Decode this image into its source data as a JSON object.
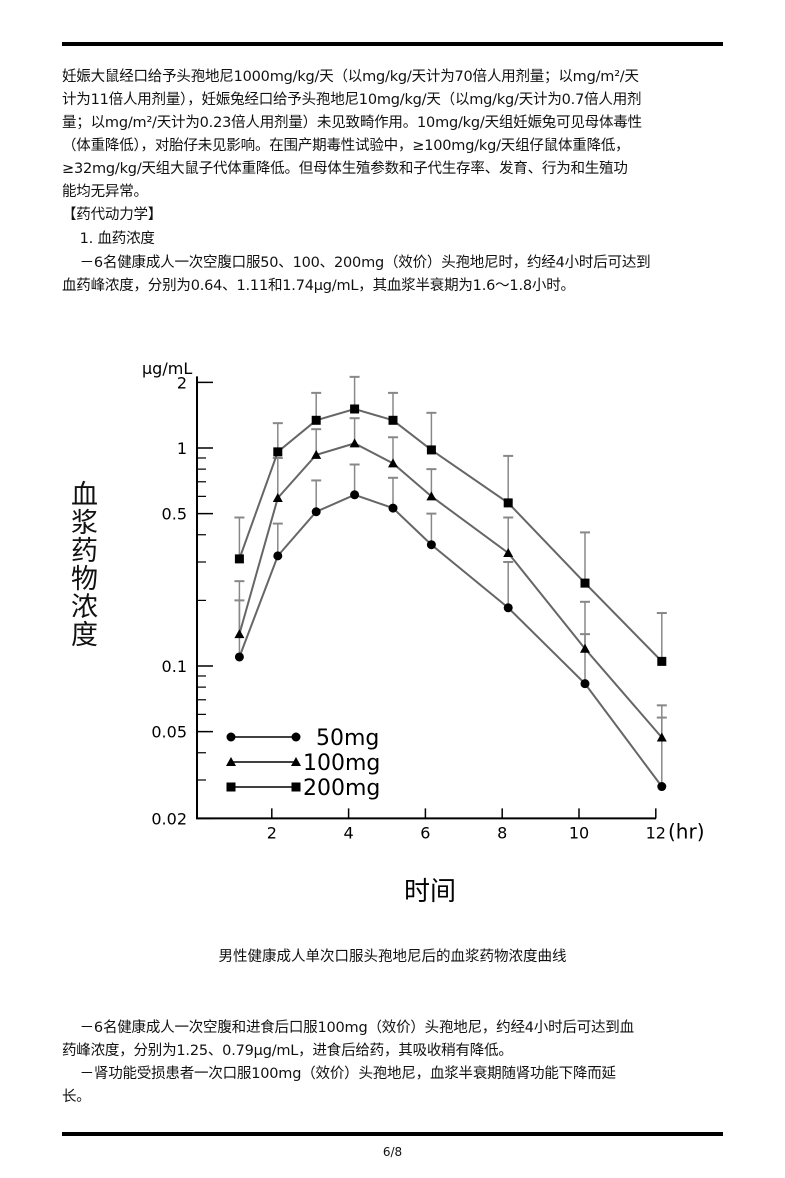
{
  "paragraph1": [
    "    妊娠大鼠经口给予头孢地尼1000mg/kg/天（以mg/kg/天计为70倍人用剂量；以mg/m²/天",
    "计为11倍人用剂量），妊娠兔经口给予头孢地尼10mg/kg/天（以mg/kg/天计为0.7倍人用剂",
    "量；以mg/m²/天计为0.23倍人用剂量）未见致畸作用。10mg/kg/天组妊娠兔可见母体毒性",
    "（体重降低），对胎仔未见影响。在围产期毒性试验中，≥100mg/kg/天组仔鼠体重降低，",
    "≥32mg/kg/天组大鼠子代体重降低。但母体生殖参数和子代生存率、发育、行为和生殖功",
    "能均无异常。"
  ],
  "section_heading": "【药代动力学】",
  "subsection": "    1. 血药浓度",
  "paragraph2": [
    "    －6名健康成人一次空腹口服50、100、200mg（效价）头孢地尼时，约经4小时后可达到",
    "血药峰浓度，分别为0.64、1.11和1.74μg/mL，其血浆半衰期为1.6～1.8小时。"
  ],
  "chart_data": {
    "type": "line",
    "title": "",
    "caption": "男性健康成人单次口服头孢地尼后的血浆药物浓度曲线",
    "xlabel": "时间",
    "xunit": "(hr)",
    "ylabel": "血浆药物浓度",
    "yunit": "μg/mL",
    "yscale": "log",
    "ylim": [
      0.02,
      2
    ],
    "xlim": [
      0,
      12
    ],
    "xticks": [
      "2",
      "4",
      "6",
      "8",
      "10",
      "12"
    ],
    "yticks": [
      "2",
      "1",
      "0.5",
      "0.1",
      "0.05",
      "0.02"
    ],
    "grid": false,
    "legend_position": "bottom-left",
    "x": [
      1,
      2,
      3,
      4,
      5,
      6,
      8,
      10,
      12
    ],
    "series": [
      {
        "name": "50mg",
        "marker": "circle",
        "values": [
          0.11,
          0.32,
          0.51,
          0.61,
          0.53,
          0.36,
          0.185,
          0.083,
          0.028
        ],
        "upper_error": [
          0.2,
          0.45,
          0.71,
          0.84,
          0.73,
          0.5,
          0.3,
          0.14,
          0.058
        ]
      },
      {
        "name": "100mg",
        "marker": "triangle",
        "values": [
          0.14,
          0.59,
          0.93,
          1.05,
          0.85,
          0.6,
          0.33,
          0.12,
          0.047
        ],
        "upper_error": [
          0.245,
          0.9,
          1.22,
          1.37,
          1.12,
          0.8,
          0.48,
          0.197,
          0.066
        ]
      },
      {
        "name": "200mg",
        "marker": "square",
        "values": [
          0.31,
          0.96,
          1.34,
          1.51,
          1.34,
          0.98,
          0.56,
          0.24,
          0.105
        ],
        "upper_error": [
          0.48,
          1.3,
          1.79,
          2.12,
          1.79,
          1.45,
          0.92,
          0.41,
          0.175
        ]
      }
    ]
  },
  "paragraph3": [
    "    －6名健康成人一次空腹和进食后口服100mg（效价）头孢地尼，约经4小时后可达到血",
    "药峰浓度，分别为1.25、0.79μg/mL，进食后给药，其吸收稍有降低。",
    "    －肾功能受损患者一次口服100mg（效价）头孢地尼，血浆半衰期随肾功能下降而延",
    "长。"
  ],
  "page_number": "6/8"
}
